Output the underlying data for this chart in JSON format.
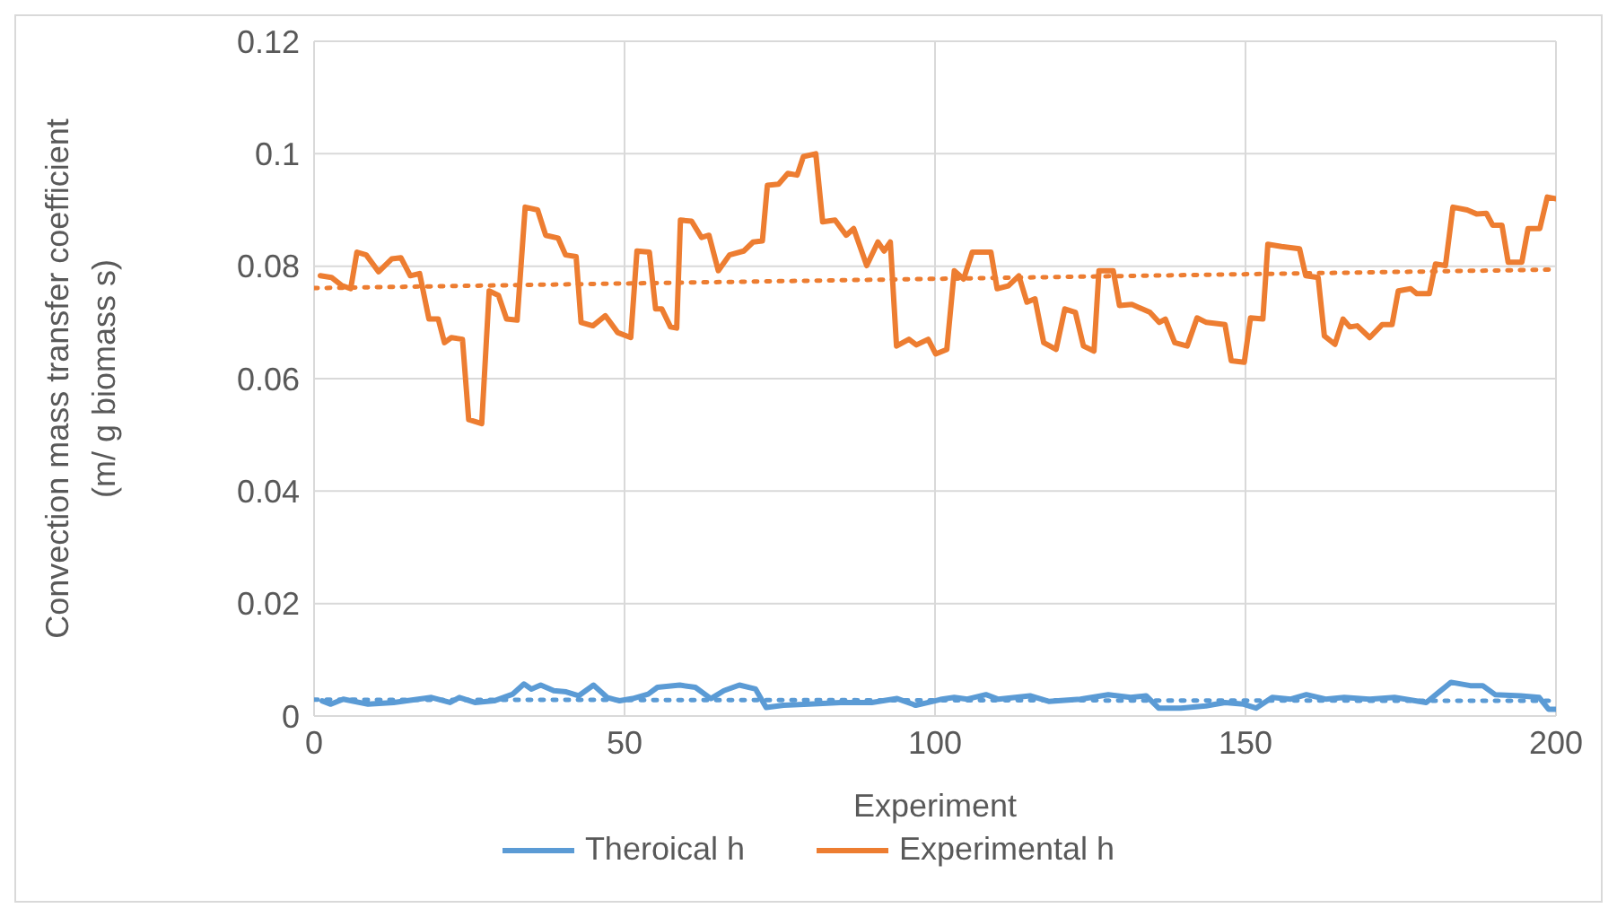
{
  "chart_data": {
    "type": "line",
    "xlabel": "Experiment",
    "ylabel": "Convection mass transfer coefficient\n(m/ g biomass s)",
    "xlim": [
      0,
      200
    ],
    "xticks": [
      0,
      50,
      100,
      150,
      200
    ],
    "ylim": [
      0,
      0.12
    ],
    "yticks": [
      0,
      0.02,
      0.04,
      0.06,
      0.08,
      0.1,
      0.12
    ],
    "grid": true,
    "legend": "bottom",
    "marker": "none",
    "series": [
      {
        "name": "Theroical h",
        "color": "#5b9bd5",
        "line_style": "solid",
        "x": [
          1.3,
          2.7,
          4.7,
          8.7,
          12.8,
          18.9,
          21.9,
          23.4,
          25.9,
          29,
          32,
          33.8,
          35,
          36.5,
          38.6,
          40.6,
          42.6,
          45,
          47.2,
          49.2,
          51.3,
          53.8,
          55.3,
          58.9,
          61.4,
          63.9,
          66,
          68.5,
          71.1,
          72.8,
          75.6,
          79.7,
          84.8,
          89.8,
          93.9,
          96.9,
          100,
          101.1,
          103.1,
          105.2,
          108.2,
          110.2,
          115.3,
          118.3,
          123.4,
          127.9,
          131.5,
          134,
          136,
          139.6,
          143.6,
          146.7,
          149.7,
          151.7,
          154.3,
          157.3,
          159.8,
          162.9,
          165.9,
          170,
          174,
          179.1,
          181.1,
          183.1,
          186.2,
          188.2,
          190.2,
          194.3,
          197.3,
          198.8,
          200
        ],
        "values": [
          0.0027,
          0.0021,
          0.003,
          0.0021,
          0.0024,
          0.0033,
          0.0024,
          0.0033,
          0.0024,
          0.0027,
          0.0039,
          0.0057,
          0.0048,
          0.0055,
          0.0045,
          0.0043,
          0.0036,
          0.0055,
          0.0033,
          0.0027,
          0.0031,
          0.0039,
          0.0051,
          0.0055,
          0.0051,
          0.0031,
          0.0045,
          0.0055,
          0.0048,
          0.0015,
          0.0019,
          0.0021,
          0.0024,
          0.0024,
          0.0031,
          0.0019,
          0.0027,
          0.003,
          0.0033,
          0.003,
          0.0038,
          0.003,
          0.0036,
          0.0026,
          0.003,
          0.0038,
          0.0033,
          0.0036,
          0.0014,
          0.0014,
          0.0018,
          0.0024,
          0.0021,
          0.0014,
          0.0033,
          0.003,
          0.0038,
          0.003,
          0.0033,
          0.003,
          0.0033,
          0.0024,
          0.0042,
          0.006,
          0.0054,
          0.0054,
          0.0038,
          0.0036,
          0.0033,
          0.0012,
          0.0012
        ]
      },
      {
        "name": "Experimental h",
        "color": "#ed7d31",
        "line_style": "solid",
        "x": [
          1,
          2.8,
          4.4,
          5.9,
          6.9,
          8.4,
          10.4,
          12.5,
          14,
          15.5,
          17,
          18.5,
          20,
          21,
          22.1,
          23.9,
          24.9,
          27,
          28.2,
          29.7,
          31,
          32.7,
          34,
          36,
          37.3,
          39.3,
          40.5,
          42.2,
          43,
          44.9,
          46.9,
          48.9,
          51,
          52,
          54,
          55,
          56,
          57.4,
          58.4,
          59,
          60.8,
          62.4,
          63.6,
          65.1,
          66.9,
          69.2,
          70.7,
          72.2,
          73,
          74.8,
          76.3,
          77.8,
          78.8,
          80.8,
          81.9,
          83.9,
          85.7,
          86.9,
          89,
          90.8,
          91.8,
          92.8,
          93.8,
          95.8,
          97,
          98.9,
          100.1,
          101.9,
          103.1,
          104.6,
          106,
          109,
          110,
          111.8,
          113.5,
          114.8,
          116.1,
          117.5,
          119.5,
          120.9,
          122.6,
          123.9,
          125.6,
          126.4,
          128.7,
          129.7,
          131.7,
          134.6,
          136.1,
          137.1,
          138.6,
          140.6,
          142.2,
          143.7,
          146.7,
          147.7,
          149.8,
          150.8,
          152.8,
          153.6,
          155.8,
          158.7,
          159.7,
          161.7,
          162.7,
          164.4,
          165.7,
          166.8,
          168,
          170,
          172,
          173.6,
          174.6,
          176.6,
          177.6,
          179.6,
          180.6,
          182.2,
          183.4,
          185.7,
          187.2,
          188.8,
          189.8,
          191.3,
          192.3,
          194.5,
          195.5,
          197.4,
          198.6,
          200
        ],
        "values": [
          0.0783,
          0.078,
          0.0766,
          0.076,
          0.0825,
          0.082,
          0.079,
          0.0813,
          0.0815,
          0.0783,
          0.0787,
          0.0706,
          0.0706,
          0.0664,
          0.0673,
          0.067,
          0.0527,
          0.052,
          0.0756,
          0.0748,
          0.0706,
          0.0704,
          0.0905,
          0.09,
          0.0855,
          0.085,
          0.082,
          0.0817,
          0.07,
          0.0694,
          0.0712,
          0.0682,
          0.0673,
          0.0827,
          0.0825,
          0.0724,
          0.0724,
          0.0692,
          0.069,
          0.0882,
          0.088,
          0.0851,
          0.0855,
          0.0792,
          0.082,
          0.0827,
          0.0843,
          0.0845,
          0.0944,
          0.0946,
          0.0965,
          0.0962,
          0.0995,
          0.1,
          0.0879,
          0.0882,
          0.0855,
          0.0867,
          0.0801,
          0.0843,
          0.0827,
          0.0843,
          0.0658,
          0.067,
          0.066,
          0.067,
          0.0644,
          0.0652,
          0.0792,
          0.0777,
          0.0825,
          0.0825,
          0.076,
          0.0765,
          0.0783,
          0.0736,
          0.0742,
          0.0664,
          0.0652,
          0.0724,
          0.0718,
          0.0658,
          0.0649,
          0.0792,
          0.0792,
          0.073,
          0.0732,
          0.0718,
          0.07,
          0.0706,
          0.0664,
          0.0658,
          0.0708,
          0.07,
          0.0696,
          0.0632,
          0.0629,
          0.0708,
          0.0706,
          0.0839,
          0.0835,
          0.0831,
          0.0783,
          0.078,
          0.0676,
          0.0661,
          0.0706,
          0.0692,
          0.0694,
          0.0673,
          0.0696,
          0.0696,
          0.0756,
          0.076,
          0.0751,
          0.0751,
          0.0804,
          0.0801,
          0.0905,
          0.09,
          0.0893,
          0.0894,
          0.0873,
          0.0873,
          0.0807,
          0.0807,
          0.0867,
          0.0867,
          0.0923,
          0.092
        ]
      },
      {
        "type": "line",
        "color": "#5b9bd5",
        "line_style": "dotted",
        "x": [
          0,
          200
        ],
        "values": [
          0.0029,
          0.0027
        ]
      },
      {
        "type": "line",
        "color": "#ed7d31",
        "line_style": "dotted",
        "x": [
          0,
          200
        ],
        "values": [
          0.0761,
          0.0794
        ]
      }
    ]
  }
}
